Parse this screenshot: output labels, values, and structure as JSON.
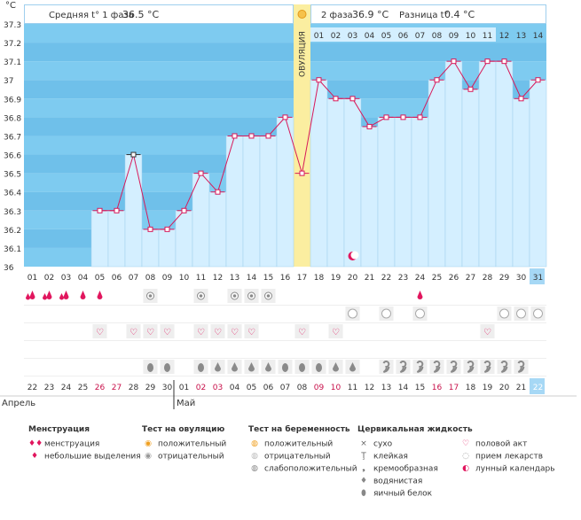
{
  "chart_data": {
    "type": "line",
    "title": "",
    "unit_label": "°C",
    "ylim": [
      36.0,
      37.3
    ],
    "y_ticks": [
      "36",
      "36.1",
      "36.2",
      "36.3",
      "36.4",
      "36.5",
      "36.6",
      "36.7",
      "36.8",
      "36.9",
      "37",
      "37.1",
      "37.2",
      "37.3"
    ],
    "cycle_days": [
      "01",
      "02",
      "03",
      "04",
      "05",
      "06",
      "07",
      "08",
      "09",
      "10",
      "11",
      "12",
      "13",
      "14",
      "15",
      "16",
      "17",
      "18",
      "19",
      "20",
      "21",
      "22",
      "23",
      "24",
      "25",
      "26",
      "27",
      "28",
      "29",
      "30",
      "31"
    ],
    "cycle_days_top": [
      "01",
      "02",
      "03",
      "04",
      "05",
      "06",
      "07",
      "08",
      "09",
      "10",
      "11",
      "12",
      "13",
      "14"
    ],
    "calendar_dates": [
      "22",
      "23",
      "24",
      "25",
      "26",
      "27",
      "28",
      "29",
      "30",
      "01",
      "02",
      "03",
      "04",
      "05",
      "06",
      "07",
      "08",
      "09",
      "10",
      "11",
      "12",
      "13",
      "14",
      "15",
      "16",
      "17",
      "18",
      "19",
      "20",
      "21",
      "22"
    ],
    "weekend_indices": [
      4,
      5,
      10,
      11,
      17,
      18,
      24,
      25
    ],
    "today_index": 30,
    "months": [
      "Апрель",
      "Май"
    ],
    "phase1_label": "Средняя t° 1 фаза",
    "phase1_avg": "36.5 °C",
    "phase2_label": "2 фаза",
    "phase2_avg": "36.9 °C",
    "diff_label": "Разница t°",
    "diff_value": "0.4 °C",
    "ovulation_label": "ОВУЛЯЦИЯ",
    "ovulation_index": 16,
    "phase2_start_index": 17,
    "moon_index": 19,
    "series": [
      {
        "name": "Базальная температура",
        "values": [
          null,
          null,
          null,
          null,
          36.3,
          36.3,
          36.6,
          36.2,
          36.2,
          36.3,
          36.5,
          36.4,
          36.7,
          36.7,
          36.7,
          36.8,
          36.5,
          37.0,
          36.9,
          36.9,
          36.75,
          36.8,
          36.8,
          36.8,
          37.0,
          37.1,
          36.95,
          37.1,
          37.1,
          36.9,
          37.0
        ]
      }
    ],
    "highlighted_point_index": 6,
    "rows": {
      "menstruation": [
        2,
        2,
        2,
        1,
        1,
        0,
        0,
        0,
        0,
        0,
        0,
        0,
        0,
        0,
        0,
        0,
        0,
        0,
        0,
        0,
        0,
        0,
        0,
        1,
        0,
        0,
        0,
        0,
        0,
        0,
        0
      ],
      "ovulation_test": [
        0,
        0,
        0,
        0,
        0,
        0,
        0,
        2,
        0,
        0,
        2,
        0,
        2,
        2,
        2,
        0,
        0,
        0,
        0,
        0,
        0,
        0,
        0,
        0,
        0,
        0,
        0,
        0,
        0,
        0,
        0
      ],
      "pregnancy_test": [
        0,
        0,
        0,
        0,
        0,
        0,
        0,
        0,
        0,
        0,
        0,
        0,
        0,
        0,
        0,
        0,
        0,
        0,
        0,
        2,
        0,
        2,
        0,
        2,
        0,
        0,
        0,
        0,
        2,
        2,
        2
      ],
      "intercourse": [
        0,
        0,
        0,
        0,
        1,
        0,
        1,
        1,
        1,
        0,
        1,
        1,
        1,
        1,
        0,
        0,
        1,
        0,
        1,
        0,
        0,
        0,
        0,
        0,
        0,
        0,
        0,
        1,
        0,
        0,
        0
      ],
      "cervical": [
        0,
        0,
        0,
        0,
        0,
        0,
        0,
        5,
        5,
        0,
        5,
        4,
        4,
        4,
        4,
        5,
        5,
        5,
        4,
        4,
        0,
        3,
        3,
        3,
        3,
        3,
        3,
        3,
        3,
        3,
        0
      ]
    },
    "legend": {
      "menstruation": {
        "title": "Менструация",
        "items": [
          "менструация",
          "небольшие выделения"
        ]
      },
      "ovulation_test": {
        "title": "Тест на овуляцию",
        "items": [
          "положительный",
          "отрицательный"
        ]
      },
      "pregnancy_test": {
        "title": "Тест на беременность",
        "items": [
          "положительный",
          "отрицательный",
          "слабоположительный"
        ]
      },
      "cervical": {
        "title": "Цервикальная жидкость",
        "items": [
          "сухо",
          "клейкая",
          "кремообразная",
          "водянистая",
          "яичный белок"
        ]
      },
      "other": {
        "items": [
          "половой акт",
          "прием лекарств",
          "лунный календарь"
        ]
      }
    },
    "colors": {
      "bar": "#d4efff",
      "bar_stroke": "#9fcfee",
      "bg": "#7ecbf0",
      "bg_alt": "#6fc0ea",
      "line": "#d7195a",
      "ovulation": "#fbeea0",
      "header_blue": "#d4efff",
      "today": "#a6d8f5",
      "pink": "#e1165e",
      "grey": "#8a8a8a"
    }
  }
}
